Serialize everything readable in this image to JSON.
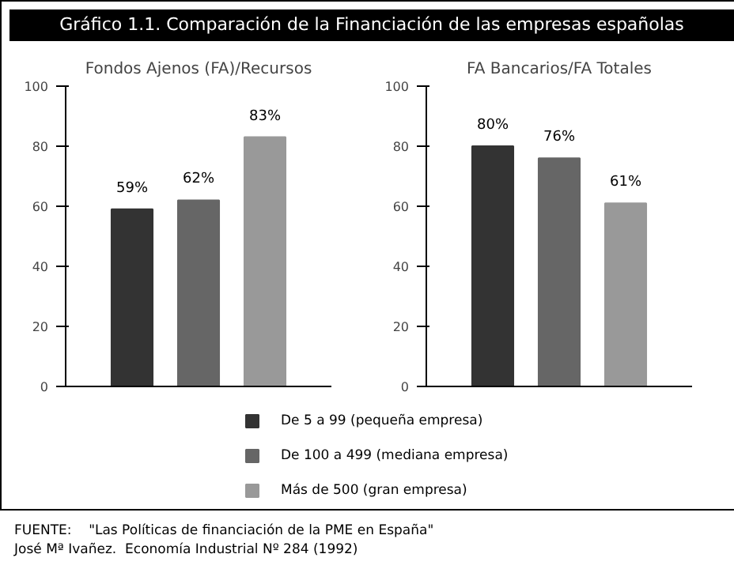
{
  "chart_data": [
    {
      "type": "bar",
      "title": "Gráfico 1.1. Comparación de la Financiación de las empresas españolas",
      "subtitle": "Fondos Ajenos (FA)/Recursos",
      "categories": [
        null
      ],
      "series": [
        {
          "name": "De 5 a 99 (pequeña empresa)",
          "color": "#333333",
          "values": [
            59
          ],
          "value_labels": [
            "59%"
          ]
        },
        {
          "name": "De 100 a 499 (mediana empresa)",
          "color": "#666666",
          "values": [
            62
          ],
          "value_labels": [
            "62%"
          ]
        },
        {
          "name": "Más de 500 (gran empresa)",
          "color": "#999999",
          "values": [
            83
          ],
          "value_labels": [
            "83%"
          ]
        }
      ],
      "ylim": [
        0,
        100
      ],
      "yticks": [
        0,
        20,
        40,
        60,
        80,
        100
      ],
      "tick_labels": "y",
      "legend": "bottom",
      "annotations": [
        "FUENTE:    \"Las Políticas de financiación de la PME en España\"",
        "José Mª Ivañez.  Economía Industrial Nº 284 (1992)"
      ]
    },
    {
      "type": "bar",
      "title": "FA Bancarios/FA Totales",
      "categories": [
        null
      ],
      "series": [
        {
          "color": "#333333",
          "values": [
            80
          ],
          "value_labels": [
            "80%"
          ]
        },
        {
          "color": "#666666",
          "values": [
            76
          ],
          "value_labels": [
            "76%"
          ]
        },
        {
          "color": "#999999",
          "values": [
            61
          ],
          "value_labels": [
            "61%"
          ]
        }
      ],
      "ylim": [
        0,
        100
      ],
      "yticks": [
        0,
        20,
        40,
        60,
        80,
        100
      ],
      "tick_labels": "y"
    }
  ]
}
